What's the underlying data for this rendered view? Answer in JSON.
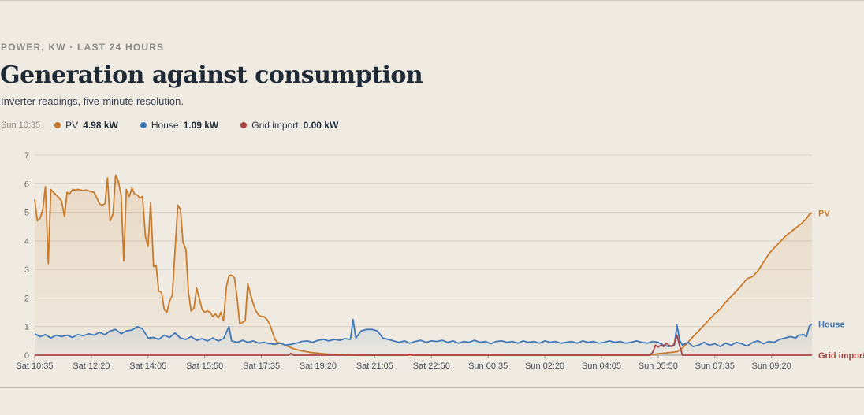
{
  "header": {
    "eyebrow": "POWER, KW · LAST 24 HOURS",
    "title": "Generation against consumption",
    "subtitle": "Inverter readings, five-minute resolution."
  },
  "readout": {
    "timestamp": "Sun 10:35",
    "items": [
      {
        "label": "PV",
        "value": "4.98 kW",
        "color": "#c97a2a"
      },
      {
        "label": "House",
        "value": "1.09 kW",
        "color": "#3f77b8"
      },
      {
        "label": "Grid import",
        "value": "0.00 kW",
        "color": "#a94442"
      }
    ]
  },
  "chart_data": {
    "type": "line",
    "ylim": [
      0,
      7
    ],
    "yticks": [
      0,
      1,
      2,
      3,
      4,
      5,
      6,
      7
    ],
    "x_ticks": [
      "Sat 10:35",
      "Sat 12:20",
      "Sat 14:05",
      "Sat 15:50",
      "Sat 17:35",
      "Sat 19:20",
      "Sat 21:05",
      "Sat 22:50",
      "Sun 00:35",
      "Sun 02:20",
      "Sun 04:05",
      "Sun 05:50",
      "Sun 07:35",
      "Sun 09:20"
    ],
    "x_range_hours": [
      0,
      24
    ],
    "grid": true,
    "series": [
      {
        "name": "PV",
        "color": "#c97a2a",
        "fill": true,
        "points": [
          [
            0,
            5.45
          ],
          [
            0.083,
            4.7
          ],
          [
            0.17,
            4.8
          ],
          [
            0.25,
            5.1
          ],
          [
            0.33,
            5.9
          ],
          [
            0.42,
            3.2
          ],
          [
            0.5,
            5.8
          ],
          [
            0.58,
            5.7
          ],
          [
            0.67,
            5.6
          ],
          [
            0.75,
            5.5
          ],
          [
            0.83,
            5.4
          ],
          [
            0.92,
            4.85
          ],
          [
            1.0,
            5.7
          ],
          [
            1.08,
            5.65
          ],
          [
            1.17,
            5.8
          ],
          [
            1.25,
            5.78
          ],
          [
            1.33,
            5.8
          ],
          [
            1.42,
            5.78
          ],
          [
            1.5,
            5.76
          ],
          [
            1.58,
            5.78
          ],
          [
            1.67,
            5.75
          ],
          [
            1.75,
            5.72
          ],
          [
            1.83,
            5.7
          ],
          [
            1.92,
            5.5
          ],
          [
            2.0,
            5.3
          ],
          [
            2.08,
            5.25
          ],
          [
            2.17,
            5.3
          ],
          [
            2.25,
            6.2
          ],
          [
            2.33,
            4.7
          ],
          [
            2.42,
            4.95
          ],
          [
            2.5,
            6.3
          ],
          [
            2.58,
            6.1
          ],
          [
            2.67,
            5.6
          ],
          [
            2.75,
            3.3
          ],
          [
            2.83,
            5.8
          ],
          [
            2.92,
            5.55
          ],
          [
            3.0,
            5.85
          ],
          [
            3.08,
            5.65
          ],
          [
            3.17,
            5.6
          ],
          [
            3.25,
            5.5
          ],
          [
            3.33,
            5.55
          ],
          [
            3.42,
            4.15
          ],
          [
            3.5,
            3.8
          ],
          [
            3.58,
            5.35
          ],
          [
            3.67,
            3.1
          ],
          [
            3.75,
            3.15
          ],
          [
            3.83,
            2.25
          ],
          [
            3.92,
            2.2
          ],
          [
            4.0,
            1.6
          ],
          [
            4.08,
            1.5
          ],
          [
            4.17,
            1.9
          ],
          [
            4.25,
            2.1
          ],
          [
            4.33,
            3.6
          ],
          [
            4.42,
            5.25
          ],
          [
            4.5,
            5.1
          ],
          [
            4.58,
            3.95
          ],
          [
            4.67,
            3.7
          ],
          [
            4.75,
            2.2
          ],
          [
            4.83,
            1.55
          ],
          [
            4.92,
            1.65
          ],
          [
            5.0,
            2.35
          ],
          [
            5.08,
            2.0
          ],
          [
            5.17,
            1.6
          ],
          [
            5.25,
            1.5
          ],
          [
            5.33,
            1.55
          ],
          [
            5.42,
            1.5
          ],
          [
            5.5,
            1.35
          ],
          [
            5.58,
            1.45
          ],
          [
            5.67,
            1.3
          ],
          [
            5.75,
            1.5
          ],
          [
            5.83,
            1.2
          ],
          [
            5.92,
            2.4
          ],
          [
            6.0,
            2.78
          ],
          [
            6.08,
            2.8
          ],
          [
            6.17,
            2.7
          ],
          [
            6.25,
            2.0
          ],
          [
            6.33,
            1.1
          ],
          [
            6.42,
            1.15
          ],
          [
            6.5,
            1.2
          ],
          [
            6.58,
            2.5
          ],
          [
            6.67,
            2.1
          ],
          [
            6.75,
            1.8
          ],
          [
            6.83,
            1.55
          ],
          [
            6.92,
            1.4
          ],
          [
            7.0,
            1.35
          ],
          [
            7.08,
            1.35
          ],
          [
            7.17,
            1.25
          ],
          [
            7.25,
            1.1
          ],
          [
            7.33,
            0.85
          ],
          [
            7.42,
            0.55
          ],
          [
            7.5,
            0.45
          ],
          [
            7.67,
            0.38
          ],
          [
            7.83,
            0.3
          ],
          [
            8.0,
            0.22
          ],
          [
            8.25,
            0.15
          ],
          [
            8.5,
            0.1
          ],
          [
            8.75,
            0.07
          ],
          [
            9.0,
            0.04
          ],
          [
            9.5,
            0.02
          ],
          [
            10.0,
            0.0
          ],
          [
            19.0,
            0.0
          ],
          [
            19.08,
            0.02
          ],
          [
            19.25,
            0.05
          ],
          [
            19.5,
            0.08
          ],
          [
            19.67,
            0.1
          ],
          [
            19.83,
            0.12
          ],
          [
            20.0,
            0.25
          ],
          [
            20.17,
            0.45
          ],
          [
            20.33,
            0.65
          ],
          [
            20.5,
            0.85
          ],
          [
            20.67,
            1.05
          ],
          [
            20.83,
            1.25
          ],
          [
            21.0,
            1.45
          ],
          [
            21.17,
            1.62
          ],
          [
            21.33,
            1.85
          ],
          [
            21.5,
            2.05
          ],
          [
            21.67,
            2.25
          ],
          [
            21.83,
            2.45
          ],
          [
            22.0,
            2.68
          ],
          [
            22.17,
            2.75
          ],
          [
            22.33,
            2.95
          ],
          [
            22.5,
            3.25
          ],
          [
            22.67,
            3.55
          ],
          [
            22.83,
            3.75
          ],
          [
            23.0,
            3.95
          ],
          [
            23.17,
            4.15
          ],
          [
            23.33,
            4.3
          ],
          [
            23.5,
            4.45
          ],
          [
            23.67,
            4.6
          ],
          [
            23.83,
            4.78
          ],
          [
            23.92,
            4.93
          ],
          [
            24.0,
            4.98
          ]
        ]
      },
      {
        "name": "House",
        "color": "#3f77b8",
        "fill": true,
        "points": [
          [
            0,
            0.75
          ],
          [
            0.17,
            0.65
          ],
          [
            0.33,
            0.72
          ],
          [
            0.5,
            0.6
          ],
          [
            0.67,
            0.7
          ],
          [
            0.83,
            0.65
          ],
          [
            1.0,
            0.7
          ],
          [
            1.17,
            0.62
          ],
          [
            1.33,
            0.72
          ],
          [
            1.5,
            0.68
          ],
          [
            1.67,
            0.75
          ],
          [
            1.83,
            0.7
          ],
          [
            2.0,
            0.8
          ],
          [
            2.17,
            0.72
          ],
          [
            2.33,
            0.85
          ],
          [
            2.5,
            0.9
          ],
          [
            2.67,
            0.75
          ],
          [
            2.83,
            0.85
          ],
          [
            3.0,
            0.88
          ],
          [
            3.17,
            1.0
          ],
          [
            3.33,
            0.92
          ],
          [
            3.5,
            0.6
          ],
          [
            3.67,
            0.62
          ],
          [
            3.83,
            0.55
          ],
          [
            4.0,
            0.7
          ],
          [
            4.17,
            0.62
          ],
          [
            4.33,
            0.78
          ],
          [
            4.5,
            0.6
          ],
          [
            4.67,
            0.55
          ],
          [
            4.83,
            0.65
          ],
          [
            5.0,
            0.52
          ],
          [
            5.17,
            0.58
          ],
          [
            5.33,
            0.5
          ],
          [
            5.5,
            0.6
          ],
          [
            5.67,
            0.5
          ],
          [
            5.83,
            0.58
          ],
          [
            6.0,
            1.0
          ],
          [
            6.08,
            0.5
          ],
          [
            6.25,
            0.45
          ],
          [
            6.42,
            0.52
          ],
          [
            6.58,
            0.45
          ],
          [
            6.75,
            0.5
          ],
          [
            6.92,
            0.42
          ],
          [
            7.08,
            0.45
          ],
          [
            7.25,
            0.4
          ],
          [
            7.42,
            0.38
          ],
          [
            7.58,
            0.42
          ],
          [
            7.75,
            0.35
          ],
          [
            7.92,
            0.38
          ],
          [
            8.08,
            0.42
          ],
          [
            8.25,
            0.48
          ],
          [
            8.42,
            0.5
          ],
          [
            8.58,
            0.45
          ],
          [
            8.75,
            0.52
          ],
          [
            8.92,
            0.55
          ],
          [
            9.08,
            0.5
          ],
          [
            9.25,
            0.55
          ],
          [
            9.42,
            0.52
          ],
          [
            9.58,
            0.58
          ],
          [
            9.75,
            0.55
          ],
          [
            9.83,
            1.25
          ],
          [
            9.92,
            0.6
          ],
          [
            10.08,
            0.85
          ],
          [
            10.25,
            0.9
          ],
          [
            10.42,
            0.9
          ],
          [
            10.58,
            0.85
          ],
          [
            10.75,
            0.6
          ],
          [
            10.92,
            0.55
          ],
          [
            11.08,
            0.5
          ],
          [
            11.25,
            0.45
          ],
          [
            11.42,
            0.5
          ],
          [
            11.58,
            0.42
          ],
          [
            11.75,
            0.48
          ],
          [
            11.92,
            0.52
          ],
          [
            12.08,
            0.45
          ],
          [
            12.25,
            0.5
          ],
          [
            12.42,
            0.48
          ],
          [
            12.58,
            0.52
          ],
          [
            12.75,
            0.45
          ],
          [
            12.92,
            0.5
          ],
          [
            13.08,
            0.42
          ],
          [
            13.25,
            0.48
          ],
          [
            13.42,
            0.45
          ],
          [
            13.58,
            0.52
          ],
          [
            13.75,
            0.45
          ],
          [
            13.92,
            0.48
          ],
          [
            14.08,
            0.4
          ],
          [
            14.25,
            0.48
          ],
          [
            14.42,
            0.5
          ],
          [
            14.58,
            0.45
          ],
          [
            14.75,
            0.48
          ],
          [
            14.92,
            0.42
          ],
          [
            15.08,
            0.5
          ],
          [
            15.25,
            0.45
          ],
          [
            15.42,
            0.48
          ],
          [
            15.58,
            0.42
          ],
          [
            15.75,
            0.5
          ],
          [
            15.92,
            0.45
          ],
          [
            16.08,
            0.48
          ],
          [
            16.25,
            0.42
          ],
          [
            16.42,
            0.45
          ],
          [
            16.58,
            0.48
          ],
          [
            16.75,
            0.42
          ],
          [
            16.92,
            0.5
          ],
          [
            17.08,
            0.45
          ],
          [
            17.25,
            0.48
          ],
          [
            17.42,
            0.42
          ],
          [
            17.58,
            0.45
          ],
          [
            17.75,
            0.5
          ],
          [
            17.92,
            0.45
          ],
          [
            18.08,
            0.48
          ],
          [
            18.25,
            0.42
          ],
          [
            18.42,
            0.45
          ],
          [
            18.58,
            0.5
          ],
          [
            18.75,
            0.45
          ],
          [
            18.92,
            0.42
          ],
          [
            19.08,
            0.48
          ],
          [
            19.25,
            0.45
          ],
          [
            19.42,
            0.35
          ],
          [
            19.58,
            0.3
          ],
          [
            19.75,
            0.35
          ],
          [
            19.83,
            1.05
          ],
          [
            19.92,
            0.5
          ],
          [
            20.0,
            0.35
          ],
          [
            20.17,
            0.45
          ],
          [
            20.33,
            0.3
          ],
          [
            20.5,
            0.35
          ],
          [
            20.67,
            0.45
          ],
          [
            20.83,
            0.35
          ],
          [
            21.0,
            0.4
          ],
          [
            21.17,
            0.3
          ],
          [
            21.33,
            0.42
          ],
          [
            21.5,
            0.35
          ],
          [
            21.67,
            0.45
          ],
          [
            21.83,
            0.4
          ],
          [
            22.0,
            0.32
          ],
          [
            22.17,
            0.45
          ],
          [
            22.33,
            0.5
          ],
          [
            22.5,
            0.4
          ],
          [
            22.67,
            0.48
          ],
          [
            22.83,
            0.45
          ],
          [
            23.0,
            0.55
          ],
          [
            23.17,
            0.6
          ],
          [
            23.33,
            0.65
          ],
          [
            23.5,
            0.6
          ],
          [
            23.58,
            0.7
          ],
          [
            23.75,
            0.72
          ],
          [
            23.83,
            0.65
          ],
          [
            23.92,
            1.02
          ],
          [
            24.0,
            1.09
          ]
        ]
      },
      {
        "name": "Grid import",
        "color": "#a94442",
        "fill": false,
        "points": [
          [
            0,
            0.0
          ],
          [
            7.83,
            0.0
          ],
          [
            7.92,
            0.06
          ],
          [
            8.0,
            0.0
          ],
          [
            11.5,
            0.0
          ],
          [
            11.58,
            0.03
          ],
          [
            11.67,
            0.0
          ],
          [
            19.0,
            0.0
          ],
          [
            19.08,
            0.1
          ],
          [
            19.17,
            0.35
          ],
          [
            19.25,
            0.28
          ],
          [
            19.33,
            0.35
          ],
          [
            19.42,
            0.3
          ],
          [
            19.5,
            0.42
          ],
          [
            19.58,
            0.35
          ],
          [
            19.67,
            0.3
          ],
          [
            19.75,
            0.4
          ],
          [
            19.83,
            0.7
          ],
          [
            19.92,
            0.3
          ],
          [
            20.0,
            0.0
          ],
          [
            24.0,
            0.0
          ]
        ]
      }
    ]
  }
}
